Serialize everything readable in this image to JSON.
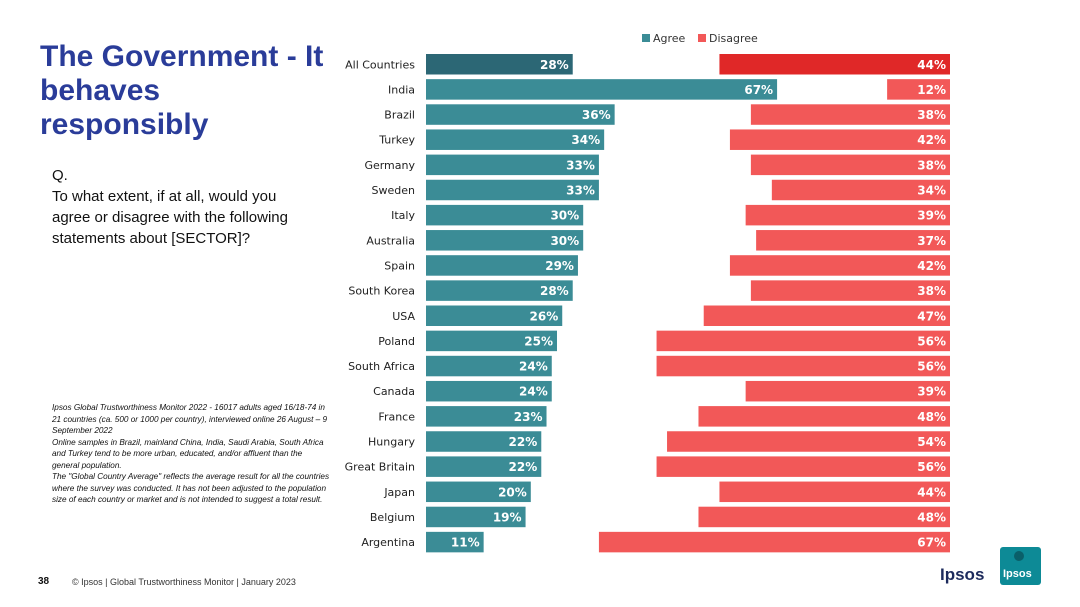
{
  "title": "The Government - It behaves responsibly",
  "question": {
    "prefix": "Q.",
    "text": "To what extent, if at all, would you agree or disagree with the following statements about [SECTOR]?"
  },
  "notes": [
    "Ipsos Global Trustworthiness Monitor 2022 - 16017 adults aged 16/18-74 in 21 countries (ca. 500 or 1000 per country), interviewed online 26 August – 9 September 2022",
    "Online samples in Brazil, mainland China, India, Saudi Arabia, South Africa and Turkey tend to be more urban, educated, and/or affluent than the general population.",
    "The \"Global Country Average\" reflects the average result for all the countries where the survey was conducted. It has not been adjusted to the population size of each country or market and is not intended to suggest a total result."
  ],
  "footer": {
    "page_number": "38",
    "text": "© Ipsos | Global Trustworthiness Monitor | January 2023",
    "logo_text": "Ipsos",
    "logo_box_text": "Ipsos"
  },
  "colors": {
    "agree": "#3b8c96",
    "agree_highlight": "#2c6775",
    "disagree": "#f25858",
    "disagree_highlight": "#e02828"
  },
  "chart_data": {
    "type": "bar",
    "orientation": "diverging-horizontal",
    "categories": [
      "All Countries",
      "India",
      "Brazil",
      "Turkey",
      "Germany",
      "Sweden",
      "Italy",
      "Australia",
      "Spain",
      "South Korea",
      "USA",
      "Poland",
      "South Africa",
      "Canada",
      "France",
      "Hungary",
      "Great Britain",
      "Japan",
      "Belgium",
      "Argentina"
    ],
    "series": [
      {
        "name": "Agree",
        "values": [
          28,
          67,
          36,
          34,
          33,
          33,
          30,
          30,
          29,
          28,
          26,
          25,
          24,
          24,
          23,
          22,
          22,
          20,
          19,
          11
        ]
      },
      {
        "name": "Disagree",
        "values": [
          44,
          12,
          38,
          42,
          38,
          34,
          39,
          37,
          42,
          38,
          47,
          56,
          56,
          39,
          48,
          54,
          56,
          44,
          48,
          67
        ]
      }
    ],
    "value_suffix": "%",
    "highlight_category": "All Countries",
    "legend_position": "top-right",
    "xlim": [
      0,
      100
    ]
  }
}
